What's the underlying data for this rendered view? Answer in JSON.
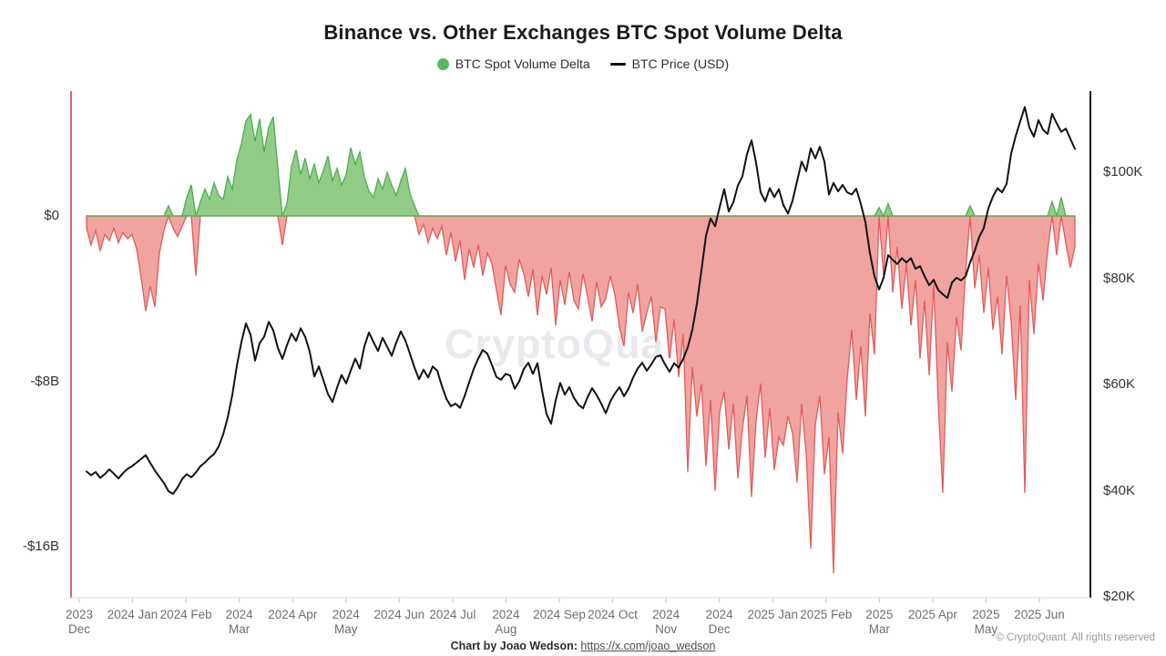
{
  "title": "Binance vs. Other Exchanges BTC Spot Volume Delta",
  "legend": [
    {
      "label": "BTC Spot Volume Delta",
      "color": "#5cb85c",
      "marker": "dot"
    },
    {
      "label": "BTC Price (USD)",
      "color": "#111111",
      "marker": "line"
    }
  ],
  "watermark": "CryptoQuant",
  "footer": {
    "credit_bold": "Chart by Joao Wedson:",
    "credit_link": "https://x.com/joao_wedson",
    "copyright": "© CryptoQuant. All rights reserved"
  },
  "colors": {
    "delta_positive_fill": "#93cb88",
    "delta_positive_stroke": "#4caf50",
    "delta_negative_fill": "#f1a3a0",
    "delta_negative_stroke": "#e25b5b",
    "price_line": "#121212",
    "left_axis_line": "#e0625f",
    "right_axis_line": "#111111",
    "bottom_axis_line": "#dcdcdc",
    "tick_mark": "#c9c9c9"
  },
  "chart_data": {
    "type": "area+line",
    "title": "Binance vs. Other Exchanges BTC Spot Volume Delta",
    "x_start": "2023 Dec",
    "x_end": "2025 Jun",
    "x_tick_labels": [
      [
        "2023",
        "Dec"
      ],
      [
        "2024 Jan"
      ],
      [
        "2024 Feb"
      ],
      [
        "2024",
        "Mar"
      ],
      [
        "2024 Apr"
      ],
      [
        "2024",
        "May"
      ],
      [
        "2024 Jun"
      ],
      [
        "2024 Jul"
      ],
      [
        "2024",
        "Aug"
      ],
      [
        "2024 Sep"
      ],
      [
        "2024 Oct"
      ],
      [
        "2024",
        "Nov"
      ],
      [
        "2024",
        "Dec"
      ],
      [
        "2025 Jan"
      ],
      [
        "2025 Feb"
      ],
      [
        "2025",
        "Mar"
      ],
      [
        "2025 Apr"
      ],
      [
        "2025",
        "May"
      ],
      [
        "2025 Jun"
      ]
    ],
    "left_axis": {
      "name": "BTC Spot Volume Delta",
      "unit": "billion USD",
      "ticks": [
        {
          "label": "$0",
          "value": 0
        },
        {
          "label": "-$8B",
          "value": -8
        },
        {
          "label": "-$16B",
          "value": -16
        }
      ]
    },
    "right_axis": {
      "name": "BTC Price (USD)",
      "unit": "thousand USD",
      "ticks": [
        {
          "label": "$100K",
          "value": 100
        },
        {
          "label": "$80K",
          "value": 80
        },
        {
          "label": "$60K",
          "value": 60
        },
        {
          "label": "$40K",
          "value": 40
        },
        {
          "label": "$20K",
          "value": 20
        }
      ]
    },
    "series": [
      {
        "name": "BTC Spot Volume Delta",
        "kind": "area",
        "unit": "billion USD",
        "values": [
          -0.6,
          -1.4,
          -0.7,
          -1.7,
          -0.9,
          -1.2,
          -0.6,
          -1.3,
          -0.8,
          -1.1,
          -0.9,
          -1.6,
          -3.0,
          -4.6,
          -3.4,
          -4.4,
          -1.8,
          -0.7,
          0.5,
          -0.6,
          -1.0,
          -0.5,
          0.9,
          1.5,
          -2.9,
          0.7,
          1.3,
          0.8,
          1.6,
          1.0,
          0.8,
          1.9,
          1.3,
          2.7,
          3.5,
          4.6,
          4.9,
          3.6,
          4.7,
          3.1,
          4.3,
          4.8,
          2.3,
          -1.4,
          0.6,
          2.4,
          3.2,
          2.0,
          2.8,
          1.8,
          2.5,
          1.6,
          2.2,
          2.9,
          1.7,
          2.3,
          1.5,
          2.0,
          3.3,
          2.5,
          3.1,
          1.9,
          1.2,
          0.9,
          1.8,
          1.3,
          2.1,
          1.5,
          1.0,
          1.7,
          2.3,
          1.1,
          0.5,
          -0.9,
          -0.4,
          -1.3,
          -0.6,
          -1.1,
          -0.5,
          -1.9,
          -0.8,
          -2.2,
          -1.2,
          -3.1,
          -1.6,
          -2.5,
          -1.4,
          -2.9,
          -1.8,
          -2.3,
          -3.6,
          -4.8,
          -2.4,
          -3.3,
          -3.7,
          -2.1,
          -2.8,
          -3.9,
          -2.6,
          -4.8,
          -2.9,
          -3.8,
          -2.5,
          -5.3,
          -3.1,
          -4.3,
          -2.7,
          -4.1,
          -4.5,
          -2.8,
          -3.9,
          -5.1,
          -3.2,
          -4.4,
          -4.0,
          -2.9,
          -3.8,
          -5.4,
          -6.3,
          -3.7,
          -4.7,
          -3.3,
          -5.6,
          -4.7,
          -3.9,
          -6.1,
          -4.4,
          -4.5,
          -6.9,
          -5.0,
          -7.8,
          -5.7,
          -12.4,
          -7.3,
          -9.7,
          -8.1,
          -12.1,
          -8.9,
          -13.3,
          -9.5,
          -8.5,
          -11.3,
          -9.1,
          -12.7,
          -10.3,
          -8.7,
          -13.6,
          -9.9,
          -8.1,
          -11.7,
          -9.3,
          -12.3,
          -10.7,
          -11.1,
          -9.7,
          -10.5,
          -12.9,
          -9.1,
          -11.5,
          -16.1,
          -10.1,
          -8.7,
          -12.5,
          -10.7,
          -17.3,
          -9.5,
          -11.5,
          -7.9,
          -5.5,
          -8.9,
          -6.3,
          -9.7,
          -4.7,
          -6.7,
          0.4,
          -2.9,
          0.6,
          -3.7,
          -1.5,
          -4.5,
          -2.3,
          -5.3,
          -3.1,
          -6.9,
          -4.1,
          -7.7,
          -3.3,
          -9.1,
          -13.4,
          -6.1,
          -8.5,
          -4.9,
          -6.5,
          -2.7,
          0.5,
          -3.5,
          -1.9,
          -4.7,
          -2.5,
          -5.5,
          -3.9,
          -6.7,
          -2.9,
          -5.1,
          -8.9,
          -4.3,
          -13.4,
          -3.1,
          -5.7,
          -2.3,
          -4.1,
          -1.7,
          0.7,
          -1.9,
          0.9,
          -1.3,
          -2.5,
          -1.5
        ]
      },
      {
        "name": "BTC Price (USD)",
        "kind": "line",
        "unit": "thousand USD",
        "values": [
          43.6,
          42.9,
          43.5,
          42.4,
          43.1,
          44.0,
          43.2,
          42.3,
          43.3,
          44.1,
          44.6,
          45.3,
          46.0,
          46.7,
          45.2,
          43.8,
          42.6,
          41.4,
          39.9,
          39.4,
          40.6,
          42.2,
          43.1,
          42.5,
          43.4,
          44.6,
          45.3,
          46.2,
          46.9,
          48.3,
          50.6,
          53.8,
          58.0,
          63.5,
          68.0,
          71.5,
          69.4,
          64.5,
          67.8,
          69.0,
          71.8,
          70.2,
          66.9,
          64.8,
          67.4,
          69.6,
          68.2,
          70.6,
          69.0,
          66.2,
          61.5,
          63.4,
          60.8,
          58.2,
          56.7,
          59.4,
          61.8,
          60.2,
          62.6,
          64.9,
          63.0,
          67.2,
          69.8,
          68.0,
          66.3,
          68.8,
          67.1,
          65.4,
          67.9,
          70.0,
          68.3,
          65.8,
          63.2,
          61.0,
          62.8,
          61.3,
          63.4,
          62.6,
          59.8,
          57.3,
          55.9,
          56.4,
          55.6,
          57.8,
          60.4,
          62.9,
          64.9,
          66.5,
          65.8,
          63.7,
          61.4,
          60.9,
          62.0,
          61.7,
          59.2,
          60.6,
          62.9,
          64.1,
          62.0,
          64.0,
          58.9,
          54.4,
          52.6,
          57.0,
          60.3,
          58.1,
          59.5,
          57.5,
          56.2,
          55.5,
          57.6,
          59.3,
          58.0,
          56.4,
          54.6,
          56.8,
          58.3,
          59.5,
          57.8,
          59.2,
          61.3,
          63.0,
          64.1,
          62.6,
          63.8,
          65.2,
          65.5,
          63.8,
          62.4,
          64.0,
          63.2,
          64.8,
          67.0,
          70.3,
          75.2,
          81.5,
          88.0,
          91.3,
          89.8,
          93.4,
          96.8,
          92.6,
          94.3,
          97.5,
          99.2,
          103.4,
          106.0,
          101.8,
          96.2,
          94.5,
          97.0,
          95.3,
          96.8,
          93.8,
          92.2,
          94.6,
          98.3,
          102.0,
          100.2,
          104.5,
          102.6,
          104.8,
          102.0,
          95.8,
          98.0,
          96.4,
          97.6,
          96.2,
          95.8,
          96.9,
          94.0,
          90.6,
          84.7,
          80.4,
          77.9,
          80.1,
          84.4,
          83.5,
          82.7,
          83.8,
          83.0,
          83.8,
          81.8,
          82.3,
          80.4,
          78.7,
          79.7,
          77.8,
          77.0,
          76.3,
          79.2,
          80.1,
          79.6,
          80.4,
          83.0,
          85.2,
          87.8,
          89.5,
          93.2,
          95.4,
          97.0,
          96.2,
          97.8,
          103.5,
          106.8,
          109.6,
          112.3,
          108.4,
          106.7,
          109.8,
          108.0,
          107.2,
          111.0,
          109.2,
          107.6,
          108.2,
          106.3,
          104.4
        ]
      }
    ]
  }
}
